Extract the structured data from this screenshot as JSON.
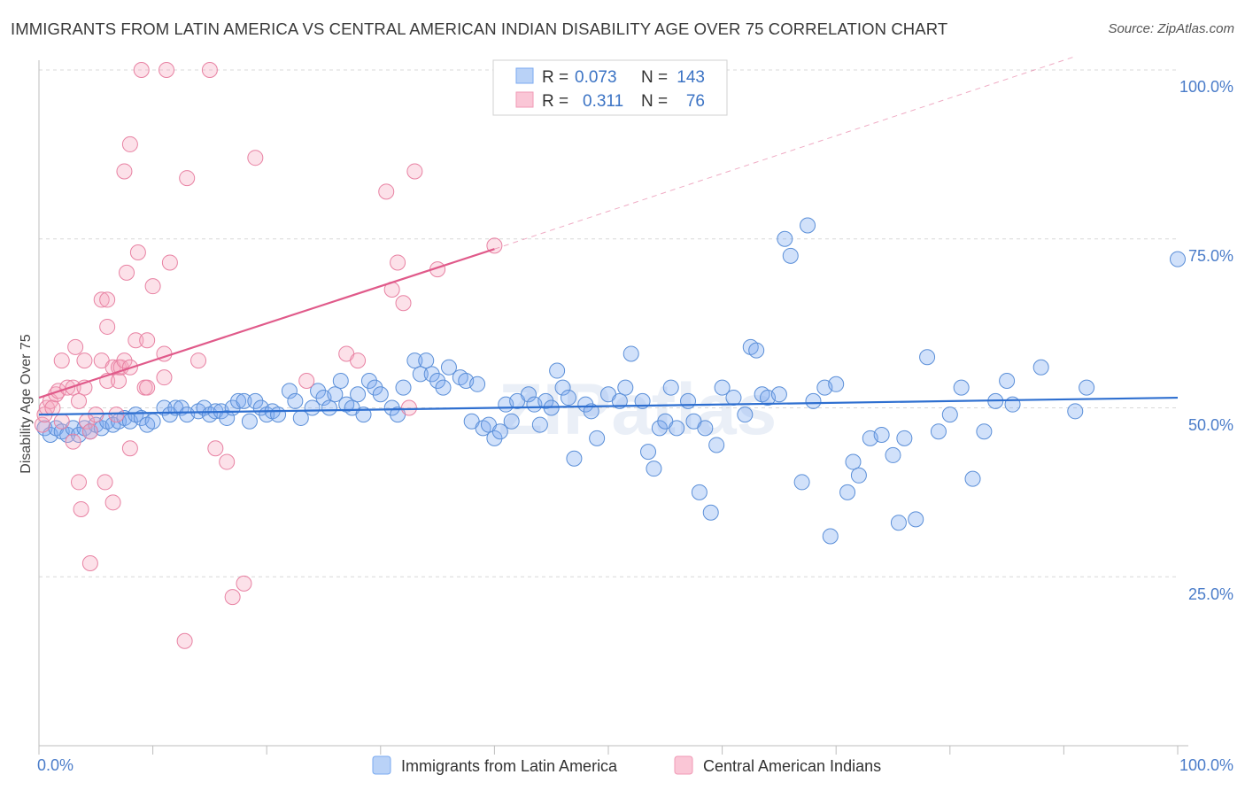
{
  "title": "IMMIGRANTS FROM LATIN AMERICA VS CENTRAL AMERICAN INDIAN DISABILITY AGE OVER 75 CORRELATION CHART",
  "source": "Source: ZipAtlas.com",
  "watermark": "ZIPatlas",
  "chart_data": {
    "type": "scatter",
    "xlabel": "",
    "ylabel": "Disability Age Over 75",
    "xlim": [
      0,
      100
    ],
    "ylim": [
      0,
      105
    ],
    "x_tick_labels": [
      "0.0%",
      "100.0%"
    ],
    "y_ticks": [
      25,
      50,
      75,
      100
    ],
    "y_tick_labels": [
      "25.0%",
      "50.0%",
      "75.0%",
      "100.0%"
    ],
    "legend": {
      "r_label": "R =",
      "n_label": "N =",
      "entries": [
        {
          "r": "0.073",
          "n": "143"
        },
        {
          "r": "0.311",
          "n": "76"
        }
      ]
    },
    "series": [
      {
        "name": "Immigrants from Latin America",
        "color": "#7aaaf0",
        "stroke": "#5b8fd8",
        "line_color": "#2e6fd0",
        "trend": {
          "x0": 0,
          "y0": 49,
          "x1": 100,
          "y1": 51.5
        },
        "points": [
          [
            0.5,
            47
          ],
          [
            1,
            46
          ],
          [
            1.5,
            47
          ],
          [
            2,
            46.5
          ],
          [
            2.5,
            46
          ],
          [
            3,
            47
          ],
          [
            3.5,
            46
          ],
          [
            4,
            47
          ],
          [
            4.5,
            46.5
          ],
          [
            5,
            47.5
          ],
          [
            5.5,
            47
          ],
          [
            6,
            48
          ],
          [
            6.5,
            47.5
          ],
          [
            7,
            48
          ],
          [
            7.5,
            48.5
          ],
          [
            8,
            48
          ],
          [
            8.5,
            49
          ],
          [
            9,
            48.5
          ],
          [
            9.5,
            47.5
          ],
          [
            10,
            48
          ],
          [
            11,
            50
          ],
          [
            11.5,
            49
          ],
          [
            12,
            50
          ],
          [
            12.5,
            50
          ],
          [
            13,
            49
          ],
          [
            14,
            49.5
          ],
          [
            14.5,
            50
          ],
          [
            15,
            49
          ],
          [
            15.5,
            49.5
          ],
          [
            16,
            49.5
          ],
          [
            16.5,
            48.5
          ],
          [
            17,
            50
          ],
          [
            17.5,
            51
          ],
          [
            18,
            51
          ],
          [
            18.5,
            48
          ],
          [
            19,
            51
          ],
          [
            19.5,
            50
          ],
          [
            20,
            49
          ],
          [
            20.5,
            49.5
          ],
          [
            21,
            49
          ],
          [
            22,
            52.5
          ],
          [
            22.5,
            51
          ],
          [
            23,
            48.5
          ],
          [
            24,
            50
          ],
          [
            24.5,
            52.5
          ],
          [
            25,
            51.5
          ],
          [
            25.5,
            50
          ],
          [
            26,
            52
          ],
          [
            26.5,
            54
          ],
          [
            27,
            50.5
          ],
          [
            27.5,
            50
          ],
          [
            28,
            52
          ],
          [
            28.5,
            49
          ],
          [
            29,
            54
          ],
          [
            29.5,
            53
          ],
          [
            30,
            52
          ],
          [
            31,
            50
          ],
          [
            31.5,
            49
          ],
          [
            32,
            53
          ],
          [
            33,
            57
          ],
          [
            33.5,
            55
          ],
          [
            34,
            57
          ],
          [
            34.5,
            55
          ],
          [
            35,
            54
          ],
          [
            35.5,
            53
          ],
          [
            36,
            56
          ],
          [
            37,
            54.5
          ],
          [
            37.5,
            54
          ],
          [
            38,
            48
          ],
          [
            38.5,
            53.5
          ],
          [
            39,
            47
          ],
          [
            39.5,
            47.5
          ],
          [
            40,
            45.5
          ],
          [
            40.5,
            46.5
          ],
          [
            41,
            50.5
          ],
          [
            41.5,
            48
          ],
          [
            42,
            51
          ],
          [
            43,
            52
          ],
          [
            43.5,
            50.5
          ],
          [
            44,
            47.5
          ],
          [
            44.5,
            51
          ],
          [
            45,
            50
          ],
          [
            45.5,
            55.5
          ],
          [
            46,
            53
          ],
          [
            46.5,
            51.5
          ],
          [
            47,
            42.5
          ],
          [
            48,
            50.5
          ],
          [
            48.5,
            49.5
          ],
          [
            49,
            45.5
          ],
          [
            50,
            52
          ],
          [
            51,
            51
          ],
          [
            51.5,
            53
          ],
          [
            52,
            58
          ],
          [
            53,
            51
          ],
          [
            53.5,
            43.5
          ],
          [
            54,
            41
          ],
          [
            54.5,
            47
          ],
          [
            55,
            48
          ],
          [
            55.5,
            53
          ],
          [
            56,
            47
          ],
          [
            57,
            51
          ],
          [
            57.5,
            48
          ],
          [
            58,
            37.5
          ],
          [
            58.5,
            47
          ],
          [
            59,
            34.5
          ],
          [
            59.5,
            44.5
          ],
          [
            60,
            53
          ],
          [
            61,
            51.5
          ],
          [
            62,
            49
          ],
          [
            62.5,
            59
          ],
          [
            63,
            58.5
          ],
          [
            63.5,
            52
          ],
          [
            64,
            51.5
          ],
          [
            65,
            52
          ],
          [
            65.5,
            75
          ],
          [
            66,
            72.5
          ],
          [
            67,
            39
          ],
          [
            67.5,
            77
          ],
          [
            68,
            51
          ],
          [
            69,
            53
          ],
          [
            69.5,
            31
          ],
          [
            70,
            53.5
          ],
          [
            71,
            37.5
          ],
          [
            71.5,
            42
          ],
          [
            72,
            40
          ],
          [
            73,
            45.5
          ],
          [
            74,
            46
          ],
          [
            75,
            43
          ],
          [
            75.5,
            33
          ],
          [
            76,
            45.5
          ],
          [
            77,
            33.5
          ],
          [
            78,
            57.5
          ],
          [
            79,
            46.5
          ],
          [
            80,
            49
          ],
          [
            81,
            53
          ],
          [
            82,
            39.5
          ],
          [
            83,
            46.5
          ],
          [
            84,
            51
          ],
          [
            85,
            54
          ],
          [
            85.5,
            50.5
          ],
          [
            88,
            56
          ],
          [
            91,
            49.5
          ],
          [
            92,
            53
          ],
          [
            100,
            72
          ]
        ]
      },
      {
        "name": "Central American Indians",
        "color": "#f7a8c0",
        "stroke": "#e882a3",
        "line_color": "#e05a8a",
        "trend": {
          "x0": 0,
          "y0": 51.5,
          "x1": 40,
          "y1": 73.5
        },
        "trend_ext": {
          "x0": 40,
          "y0": 73.5,
          "x1": 91,
          "y1": 102
        },
        "points": [
          [
            0.3,
            47.5
          ],
          [
            0.5,
            49
          ],
          [
            0.7,
            50
          ],
          [
            1,
            51
          ],
          [
            1.2,
            50
          ],
          [
            1.5,
            52
          ],
          [
            1.7,
            52.5
          ],
          [
            2,
            48
          ],
          [
            2,
            57
          ],
          [
            2.5,
            53
          ],
          [
            3,
            53
          ],
          [
            3,
            45
          ],
          [
            3.2,
            59
          ],
          [
            3.5,
            51
          ],
          [
            3.5,
            39
          ],
          [
            3.7,
            35
          ],
          [
            4,
            57
          ],
          [
            4,
            53
          ],
          [
            4.2,
            48
          ],
          [
            4.5,
            27
          ],
          [
            4.5,
            46.5
          ],
          [
            5,
            49
          ],
          [
            5.5,
            66
          ],
          [
            5.5,
            57
          ],
          [
            5.8,
            39
          ],
          [
            6,
            66
          ],
          [
            6,
            62
          ],
          [
            6,
            54
          ],
          [
            6.5,
            56
          ],
          [
            6.5,
            36
          ],
          [
            6.8,
            49
          ],
          [
            7,
            56
          ],
          [
            7,
            54
          ],
          [
            7.2,
            56
          ],
          [
            7.5,
            57
          ],
          [
            7.5,
            85
          ],
          [
            7.7,
            70
          ],
          [
            8,
            56
          ],
          [
            8,
            89
          ],
          [
            8,
            44
          ],
          [
            8.5,
            60
          ],
          [
            8.7,
            73
          ],
          [
            9,
            100
          ],
          [
            9.3,
            53
          ],
          [
            9.5,
            53
          ],
          [
            9.5,
            60
          ],
          [
            10,
            68
          ],
          [
            11,
            54.5
          ],
          [
            11,
            58
          ],
          [
            11.2,
            100
          ],
          [
            11.5,
            71.5
          ],
          [
            13,
            84
          ],
          [
            14,
            57
          ],
          [
            15,
            100
          ],
          [
            15.5,
            44
          ],
          [
            16.5,
            42
          ],
          [
            17,
            22
          ],
          [
            18,
            24
          ],
          [
            19,
            87
          ],
          [
            12.8,
            15.5
          ],
          [
            23.5,
            54
          ],
          [
            27,
            58
          ],
          [
            28,
            57
          ],
          [
            30.5,
            82
          ],
          [
            31,
            67.5
          ],
          [
            31.5,
            71.5
          ],
          [
            32,
            65.5
          ],
          [
            32.5,
            50
          ],
          [
            33,
            85
          ],
          [
            35,
            70.5
          ],
          [
            40,
            74
          ]
        ]
      }
    ]
  }
}
